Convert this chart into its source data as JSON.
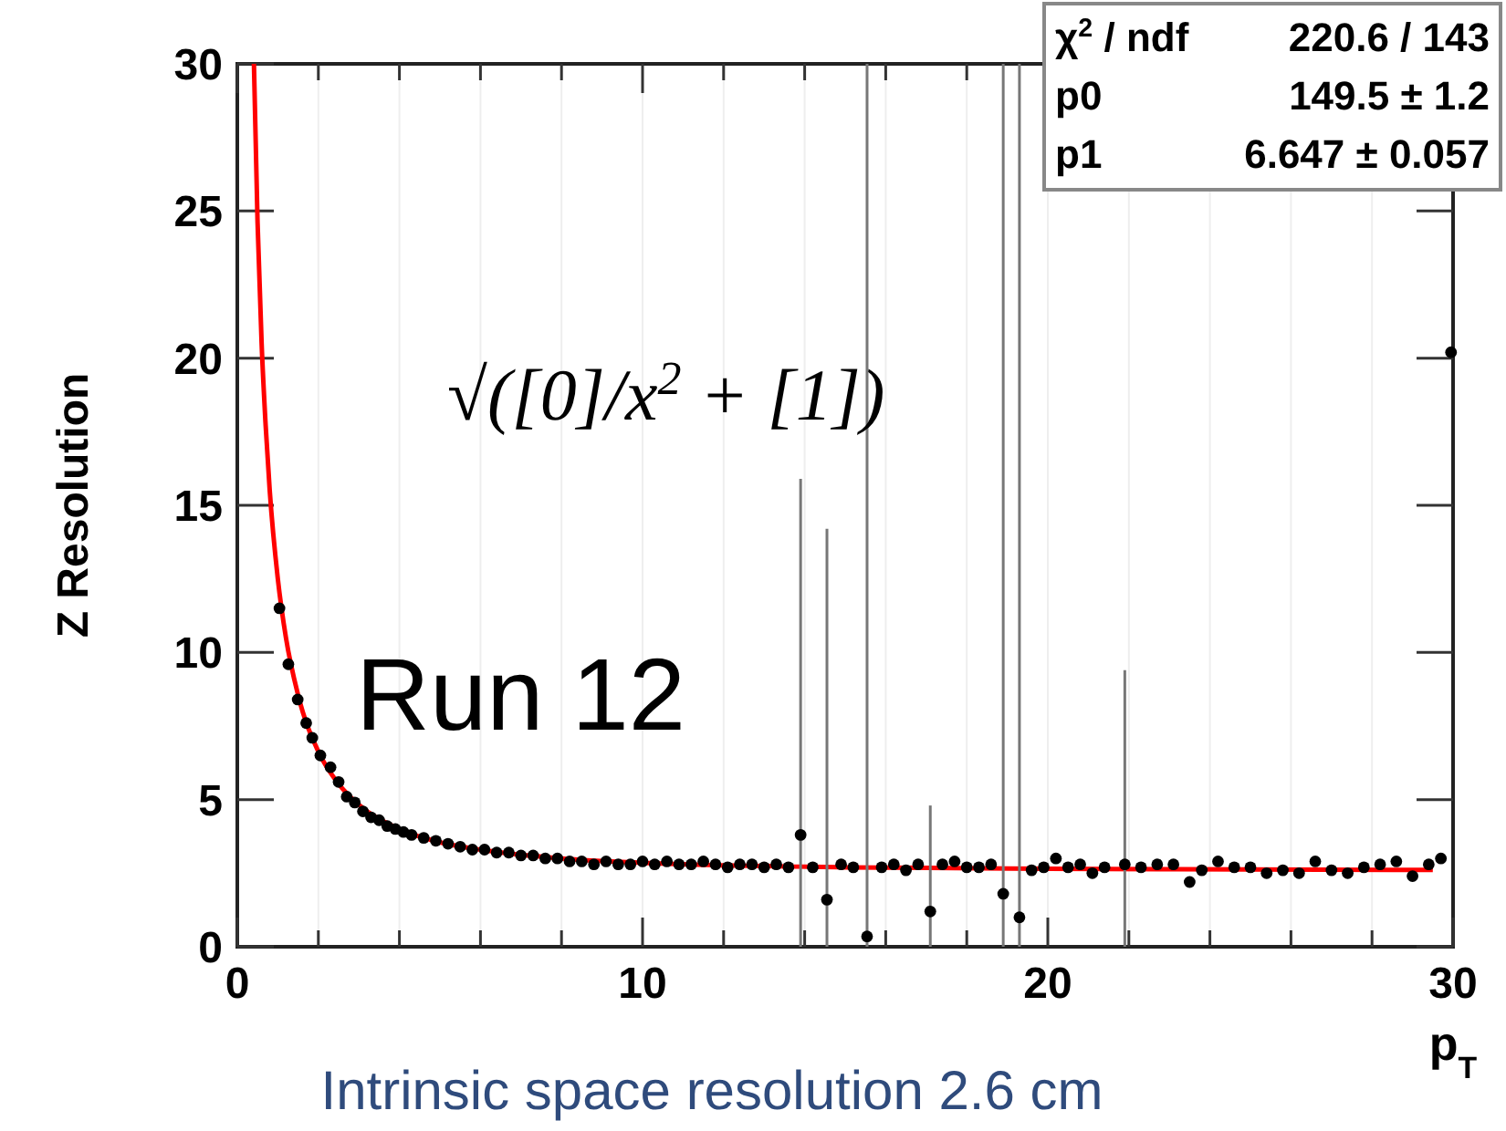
{
  "chart_data": {
    "type": "scatter",
    "xlabel": "p$_{T}$",
    "ylabel": "Z Resolution",
    "xlim": [
      0,
      30
    ],
    "ylim": [
      0,
      30
    ],
    "xticks": [
      0,
      {
        "value": 2,
        "label": null
      },
      {
        "value": 4,
        "label": null
      },
      {
        "value": 6,
        "label": null
      },
      {
        "value": 8,
        "label": null
      },
      10,
      {
        "value": 12,
        "label": null
      },
      {
        "value": 14,
        "label": null
      },
      {
        "value": 16,
        "label": null
      },
      {
        "value": 18,
        "label": null
      },
      20,
      {
        "value": 22,
        "label": null
      },
      {
        "value": 24,
        "label": null
      },
      {
        "value": 26,
        "label": null
      },
      {
        "value": 28,
        "label": null
      },
      30
    ],
    "yticks": [
      0,
      5,
      10,
      15,
      20,
      25,
      30
    ],
    "grid": "x",
    "annotations": [
      "Run 12",
      "√([0]/x$^{2}$ + [1])",
      "χ$^{2}$ / ndf\t220.6 / 143",
      "p0\t149.5 ± 1.2",
      "p1\t6.647 ± 0.057",
      "Intrinsic space resolution 2.6 cm"
    ],
    "series": [
      {
        "color": "#000000",
        "marker": "circle",
        "x": [
          1.04,
          1.26,
          1.49,
          1.7,
          1.85,
          2.05,
          2.3,
          2.5,
          2.7,
          2.9,
          3.1,
          3.3,
          3.5,
          3.7,
          3.9,
          4.1,
          4.3,
          4.6,
          4.9,
          5.2,
          5.5,
          5.8,
          6.1,
          6.4,
          6.7,
          7.0,
          7.3,
          7.6,
          7.9,
          8.2,
          8.5,
          8.8,
          9.1,
          9.4,
          9.7,
          10.0,
          10.3,
          10.6,
          10.9,
          11.2,
          11.5,
          11.8,
          12.1,
          12.4,
          12.7,
          13.0,
          13.3,
          13.6,
          13.9,
          14.2,
          14.55,
          14.9,
          15.2,
          15.54,
          15.9,
          16.2,
          16.5,
          16.8,
          17.1,
          17.4,
          17.7,
          18.0,
          18.3,
          18.6,
          18.9,
          19.3,
          19.6,
          19.9,
          20.2,
          20.5,
          20.8,
          21.1,
          21.4,
          21.9,
          22.3,
          22.7,
          23.1,
          23.5,
          23.8,
          24.2,
          24.6,
          25.0,
          25.4,
          25.8,
          26.2,
          26.6,
          27.0,
          27.4,
          27.8,
          28.2,
          28.6,
          29.0,
          29.4,
          29.7,
          29.95
        ],
        "values": [
          11.5,
          9.6,
          8.4,
          7.6,
          7.1,
          6.5,
          6.1,
          5.6,
          5.1,
          4.9,
          4.6,
          4.4,
          4.3,
          4.1,
          4.0,
          3.9,
          3.8,
          3.7,
          3.6,
          3.5,
          3.4,
          3.3,
          3.3,
          3.2,
          3.2,
          3.1,
          3.1,
          3.0,
          3.0,
          2.9,
          2.9,
          2.8,
          2.9,
          2.8,
          2.8,
          2.9,
          2.8,
          2.9,
          2.8,
          2.8,
          2.9,
          2.8,
          2.7,
          2.8,
          2.8,
          2.7,
          2.8,
          2.7,
          3.8,
          2.7,
          1.6,
          2.8,
          2.7,
          0.35,
          2.7,
          2.8,
          2.6,
          2.8,
          1.2,
          2.8,
          2.9,
          2.7,
          2.7,
          2.8,
          1.8,
          1.0,
          2.6,
          2.7,
          3.0,
          2.7,
          2.8,
          2.5,
          2.7,
          2.8,
          2.7,
          2.8,
          2.8,
          2.2,
          2.6,
          2.9,
          2.7,
          2.7,
          2.5,
          2.6,
          2.5,
          2.9,
          2.6,
          2.5,
          2.7,
          2.8,
          2.9,
          2.4,
          2.8,
          3.0,
          20.2
        ],
        "errors": [
          null,
          null,
          null,
          null,
          null,
          null,
          null,
          null,
          null,
          null,
          null,
          null,
          null,
          null,
          null,
          null,
          null,
          null,
          null,
          null,
          null,
          null,
          null,
          null,
          null,
          null,
          null,
          null,
          null,
          null,
          null,
          null,
          null,
          null,
          null,
          null,
          null,
          null,
          null,
          null,
          null,
          null,
          null,
          null,
          null,
          null,
          null,
          null,
          [
            0,
            15.9
          ],
          null,
          [
            0,
            14.2
          ],
          null,
          null,
          [
            0,
            30
          ],
          null,
          null,
          null,
          null,
          [
            0,
            4.8
          ],
          null,
          null,
          null,
          null,
          null,
          [
            0,
            30
          ],
          [
            0,
            30
          ],
          null,
          null,
          null,
          null,
          null,
          null,
          null,
          [
            0,
            9.4
          ],
          null,
          null,
          null,
          null,
          null,
          null,
          null,
          null,
          null,
          null,
          null,
          null,
          null,
          null,
          null,
          null,
          null,
          null,
          null,
          null,
          null
        ]
      },
      {
        "type": "line",
        "color": "#ff0000",
        "marker": "none",
        "line_style": "solid",
        "x": [
          0.41,
          0.5,
          0.6,
          0.7,
          0.8,
          1.0,
          1.2,
          1.5,
          2,
          2.5,
          3,
          4,
          5,
          6,
          8,
          10,
          15,
          20,
          25,
          29.5
        ],
        "values": [
          30,
          24.6,
          20.5,
          17.7,
          15.5,
          12.5,
          10.5,
          8.55,
          6.63,
          5.53,
          4.82,
          4.0,
          3.55,
          3.3,
          3.0,
          2.85,
          2.7,
          2.65,
          2.63,
          2.61
        ]
      }
    ]
  }
}
